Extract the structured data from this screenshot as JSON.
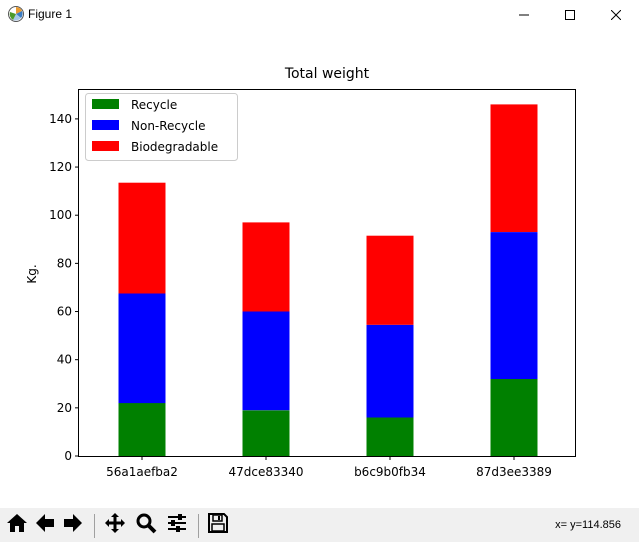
{
  "window": {
    "title": "Figure 1",
    "minimize_icon": "minimize-icon",
    "maximize_icon": "maximize-icon",
    "close_icon": "close-icon",
    "app_icon": "matplotlib-logo-icon"
  },
  "toolbar": {
    "buttons": [
      {
        "name": "home",
        "icon": "home-icon"
      },
      {
        "name": "back",
        "icon": "arrow-left-icon"
      },
      {
        "name": "forward",
        "icon": "arrow-right-icon"
      },
      {
        "name": "pan",
        "icon": "move-icon"
      },
      {
        "name": "zoom",
        "icon": "magnifier-icon"
      },
      {
        "name": "configure",
        "icon": "sliders-icon"
      },
      {
        "name": "save",
        "icon": "floppy-disk-icon"
      }
    ],
    "coords": "x= y=114.856"
  },
  "chart_data": {
    "type": "bar",
    "stacked": true,
    "title": "Total weight",
    "xlabel": "",
    "ylabel": "Kg.",
    "categories": [
      "56a1aefba2",
      "47dce83340",
      "b6c9b0fb34",
      "87d3ee3389"
    ],
    "series": [
      {
        "name": "Recycle",
        "color": "#008000",
        "values": [
          22,
          19,
          16,
          32
        ]
      },
      {
        "name": "Non-Recycle",
        "color": "#0000ff",
        "values": [
          45.5,
          41,
          38.5,
          61
        ]
      },
      {
        "name": "Biodegradable",
        "color": "#ff0000",
        "values": [
          46,
          37,
          37,
          53
        ]
      }
    ],
    "ylim": [
      0,
      152
    ],
    "yticks": [
      0,
      20,
      40,
      60,
      80,
      100,
      120,
      140
    ],
    "grid": false,
    "legend_position": "upper-left"
  }
}
